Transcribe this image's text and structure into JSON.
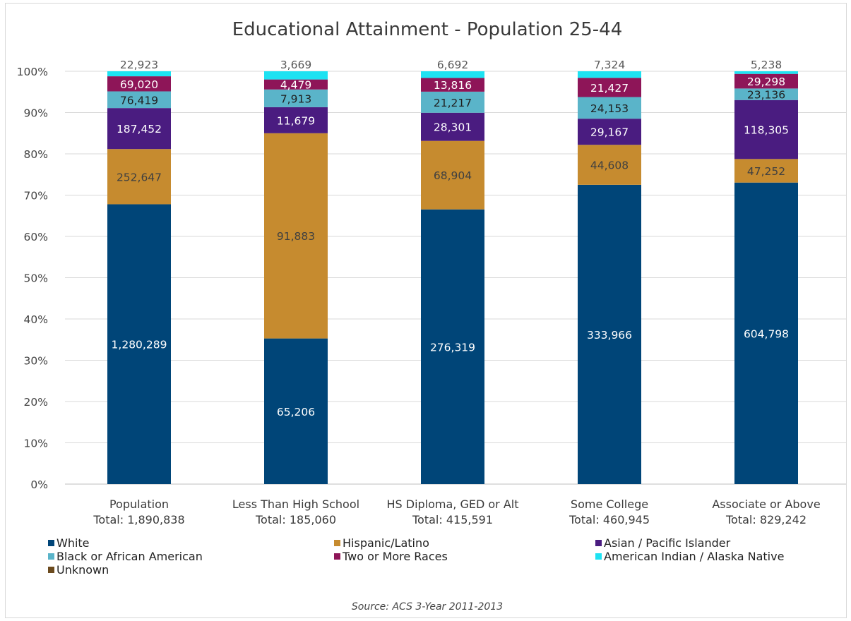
{
  "chart_data": {
    "type": "bar",
    "stacked": true,
    "normalized": true,
    "title": "Educational Attainment - Population 25-44",
    "source": "Source: ACS 3-Year 2011-2013",
    "categories": [
      "Population",
      "Less Than High School",
      "HS Diploma, GED or Alt",
      "Some College",
      "Associate or Above"
    ],
    "category_totals": [
      "Total: 1,890,838",
      "Total: 185,060",
      "Total: 415,591",
      "Total: 460,945",
      "Total: 829,242"
    ],
    "y_ticks": [
      "0%",
      "10%",
      "20%",
      "30%",
      "40%",
      "50%",
      "60%",
      "70%",
      "80%",
      "90%",
      "100%"
    ],
    "ylim": [
      0,
      1
    ],
    "grid": true,
    "legend_position": "bottom",
    "series": [
      {
        "name": "White",
        "color": "#004578",
        "label_color": "#ffffff",
        "values": [
          1280289,
          65206,
          276319,
          333966,
          604798
        ],
        "labels": [
          "1,280,289",
          "65,206",
          "276,319",
          "333,966",
          "604,798"
        ]
      },
      {
        "name": "Hispanic/Latino",
        "color": "#c68b2f",
        "label_color": "#404040",
        "values": [
          252647,
          91883,
          68904,
          44608,
          47252
        ],
        "labels": [
          "252,647",
          "91,883",
          "68,904",
          "44,608",
          "47,252"
        ]
      },
      {
        "name": "Asian / Pacific Islander",
        "color": "#4a1c80",
        "label_color": "#ffffff",
        "values": [
          187452,
          11679,
          28301,
          29167,
          118305
        ],
        "labels": [
          "187,452",
          "11,679",
          "28,301",
          "29,167",
          "118,305"
        ]
      },
      {
        "name": "Black or African American",
        "color": "#5ab4c9",
        "label_color": "#1f1f1f",
        "values": [
          76419,
          7913,
          21217,
          24153,
          23136
        ],
        "labels": [
          "76,419",
          "7,913",
          "21,217",
          "24,153",
          "23,136"
        ]
      },
      {
        "name": "Two or More Races",
        "color": "#8e1558",
        "label_color": "#ffffff",
        "values": [
          69020,
          4479,
          13816,
          21427,
          29298
        ],
        "labels": [
          "69,020",
          "4,479",
          "13,816",
          "21,427",
          "29,298"
        ]
      },
      {
        "name": "American Indian / Alaska Native",
        "color": "#1de2f2",
        "label_color": "#595959",
        "values": [
          22923,
          3669,
          6692,
          7324,
          5238
        ],
        "labels": [
          "22,923",
          "3,669",
          "6,692",
          "7,324",
          "5,238"
        ]
      },
      {
        "name": "Unknown",
        "color": "#6b4a1e",
        "label_color": "#ffffff",
        "values": [
          0,
          0,
          0,
          0,
          0
        ],
        "labels": [
          "",
          "",
          "",
          "",
          ""
        ]
      }
    ]
  }
}
